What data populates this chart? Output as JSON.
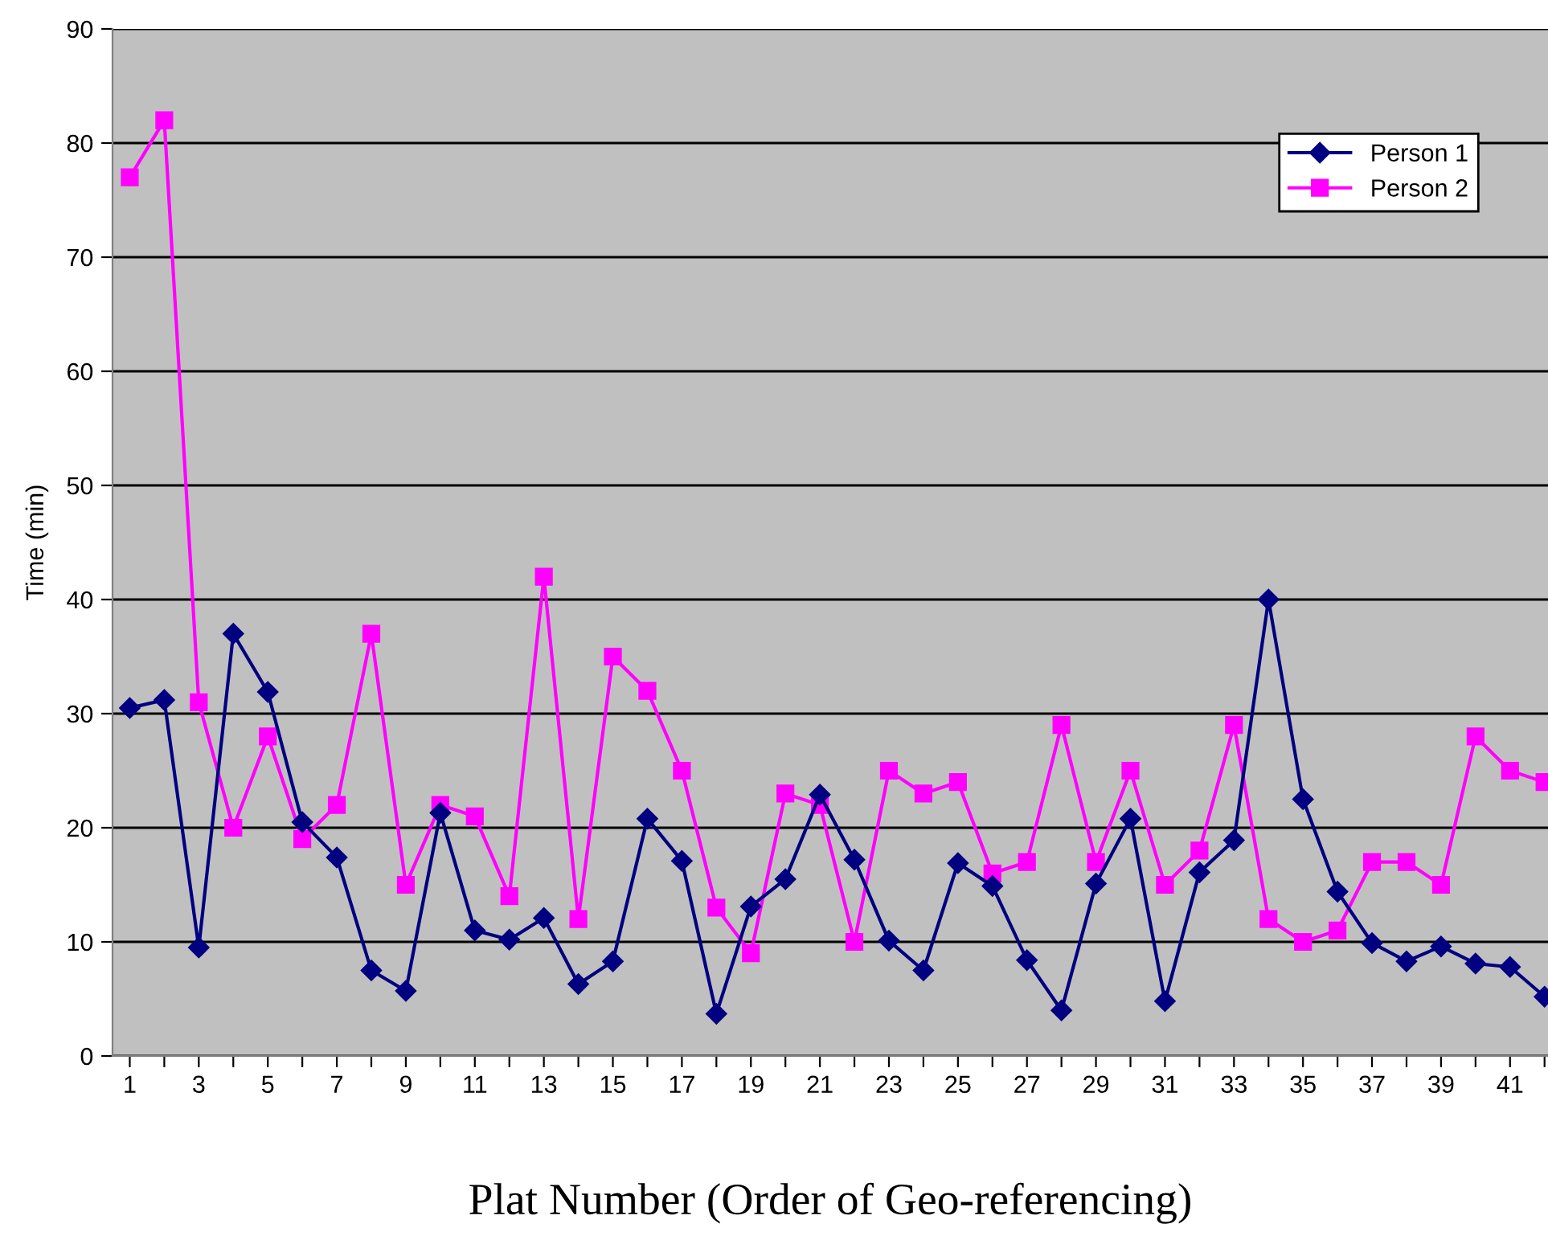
{
  "chart_data": {
    "type": "line",
    "xlabel": "Plat Number (Order of Geo-referencing)",
    "ylabel": "Time (min)",
    "categories": [
      "1",
      null,
      "3",
      null,
      "5",
      null,
      "7",
      null,
      "9",
      null,
      "11",
      null,
      "13",
      null,
      "15",
      null,
      "17",
      null,
      "19",
      null,
      "21",
      null,
      "23",
      null,
      "25",
      null,
      "27",
      null,
      "29",
      null,
      "31",
      null,
      "33",
      null,
      "35",
      null,
      "37",
      null,
      "39",
      null,
      "41",
      null
    ],
    "series": [
      {
        "name": "Person 1",
        "color": "#000080",
        "marker": "diamond",
        "values": [
          30.5,
          31.2,
          9.5,
          37,
          31.9,
          20.5,
          17.4,
          7.5,
          5.7,
          21.3,
          11,
          10.2,
          12.1,
          6.3,
          8.3,
          20.8,
          17.1,
          3.7,
          13.1,
          15.5,
          22.9,
          17.2,
          10.1,
          7.5,
          16.9,
          14.9,
          8.4,
          4,
          15.1,
          20.8,
          4.8,
          16.1,
          18.9,
          40,
          22.5,
          14.4,
          9.9,
          8.3,
          9.6,
          8.1,
          7.8,
          5.2
        ]
      },
      {
        "name": "Person 2",
        "color": "#ff00ff",
        "marker": "square",
        "values": [
          77,
          82,
          31,
          20,
          28,
          19,
          22,
          37,
          15,
          22,
          21,
          14,
          42,
          12,
          35,
          32,
          25,
          13,
          9,
          23,
          22,
          10,
          25,
          23,
          24,
          16,
          17,
          29,
          17,
          25,
          15,
          18,
          29,
          12,
          10,
          11,
          17,
          17,
          15,
          28,
          25,
          24
        ]
      }
    ],
    "ylim": [
      0,
      90
    ],
    "yticks": [
      0,
      10,
      20,
      30,
      40,
      50,
      60,
      70,
      80,
      90
    ],
    "grid": "y",
    "legend": "top right"
  }
}
